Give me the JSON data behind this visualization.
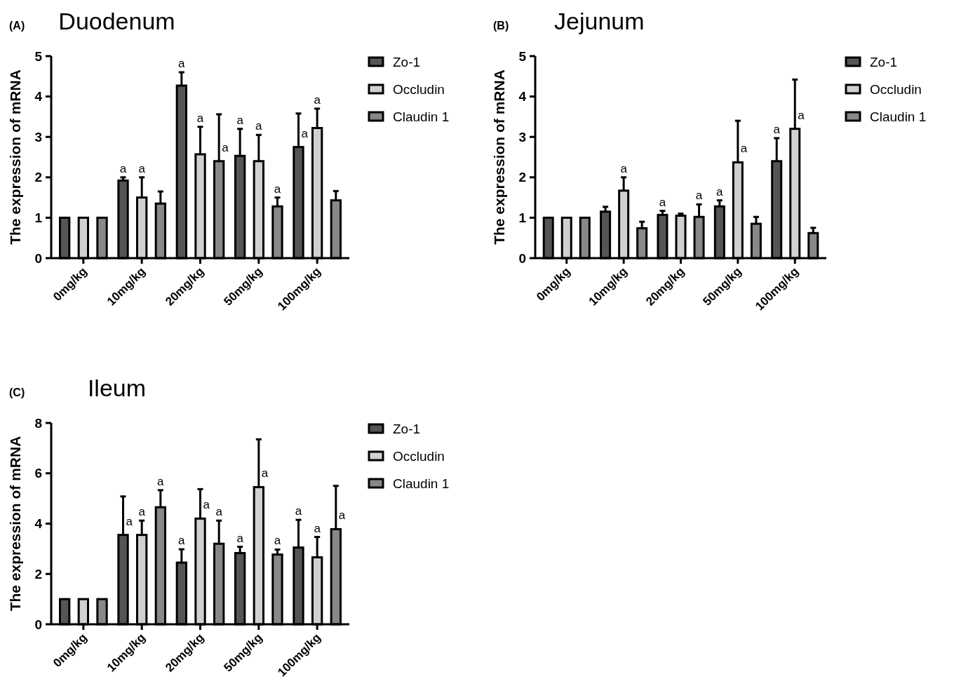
{
  "chart_data": [
    {
      "type": "bar",
      "title": "Duodenum",
      "ylabel": "The expression of mRNA",
      "annotations": [
        "(A)"
      ],
      "categories": [
        "0mg/kg",
        "10mg/kg",
        "20mg/kg",
        "50mg/kg",
        "100mg/kg"
      ],
      "ylim": [
        0,
        5
      ],
      "yticks": [
        0,
        1,
        2,
        3,
        4,
        5
      ],
      "legend": "right",
      "grid": false,
      "series": [
        {
          "name": "Zo-1",
          "color": "#555555",
          "values": [
            1,
            1.92,
            4.27,
            2.53,
            2.75
          ],
          "errors": [
            null,
            0.08,
            0.33,
            0.67,
            0.83
          ],
          "value_labels": [
            null,
            "a",
            "a",
            "a",
            "a"
          ]
        },
        {
          "name": "Occludin",
          "color": "#d0d0d0",
          "values": [
            1,
            1.5,
            2.57,
            2.4,
            3.22
          ],
          "errors": [
            null,
            0.5,
            0.68,
            0.65,
            0.48
          ],
          "value_labels": [
            null,
            "a",
            "a",
            "a",
            "a"
          ]
        },
        {
          "name": "Claudin 1",
          "color": "#888888",
          "values": [
            1,
            1.35,
            2.4,
            1.28,
            1.43
          ],
          "errors": [
            null,
            0.3,
            1.16,
            0.22,
            0.23
          ],
          "value_labels": [
            null,
            null,
            "a",
            "a",
            null
          ]
        }
      ]
    },
    {
      "type": "bar",
      "title": "Jejunum",
      "ylabel": "The expression of mRNA",
      "annotations": [
        "(B)"
      ],
      "categories": [
        "0mg/kg",
        "10mg/kg",
        "20mg/kg",
        "50mg/kg",
        "100mg/kg"
      ],
      "ylim": [
        0,
        5
      ],
      "yticks": [
        0,
        1,
        2,
        3,
        4,
        5
      ],
      "legend": "right",
      "grid": false,
      "series": [
        {
          "name": "Zo-1",
          "color": "#555555",
          "values": [
            1,
            1.15,
            1.07,
            1.28,
            2.4
          ],
          "errors": [
            null,
            0.12,
            0.1,
            0.15,
            0.57
          ],
          "value_labels": [
            null,
            null,
            "a",
            "a",
            "a"
          ]
        },
        {
          "name": "Occludin",
          "color": "#d0d0d0",
          "values": [
            1,
            1.67,
            1.05,
            2.37,
            3.2
          ],
          "errors": [
            null,
            0.33,
            0.05,
            1.03,
            1.22
          ],
          "value_labels": [
            null,
            "a",
            null,
            "a",
            "a"
          ]
        },
        {
          "name": "Claudin 1",
          "color": "#888888",
          "values": [
            1,
            0.74,
            1.02,
            0.85,
            0.62
          ],
          "errors": [
            null,
            0.16,
            0.31,
            0.17,
            0.13
          ],
          "value_labels": [
            null,
            null,
            "a",
            null,
            null
          ]
        }
      ]
    },
    {
      "type": "bar",
      "title": "Ileum",
      "ylabel": "The expression of mRNA",
      "annotations": [
        "(C)"
      ],
      "categories": [
        "0mg/kg",
        "10mg/kg",
        "20mg/kg",
        "50mg/kg",
        "100mg/kg"
      ],
      "ylim": [
        0,
        8
      ],
      "yticks": [
        0,
        2,
        4,
        6,
        8
      ],
      "legend": "right",
      "grid": false,
      "series": [
        {
          "name": "Zo-1",
          "color": "#555555",
          "values": [
            1,
            3.55,
            2.45,
            2.83,
            3.05
          ],
          "errors": [
            null,
            1.53,
            0.53,
            0.25,
            1.1
          ],
          "value_labels": [
            null,
            "a",
            "a",
            "a",
            "a"
          ]
        },
        {
          "name": "Occludin",
          "color": "#d0d0d0",
          "values": [
            1,
            3.55,
            4.2,
            5.45,
            2.66
          ],
          "errors": [
            null,
            0.57,
            1.17,
            1.9,
            0.81
          ],
          "value_labels": [
            null,
            "a",
            "a",
            "a",
            "a"
          ]
        },
        {
          "name": "Claudin 1",
          "color": "#888888",
          "values": [
            1,
            4.65,
            3.2,
            2.77,
            3.78
          ],
          "errors": [
            null,
            0.68,
            0.92,
            0.2,
            1.72
          ],
          "value_labels": [
            null,
            "a",
            "a",
            "a",
            "a"
          ]
        }
      ]
    }
  ]
}
